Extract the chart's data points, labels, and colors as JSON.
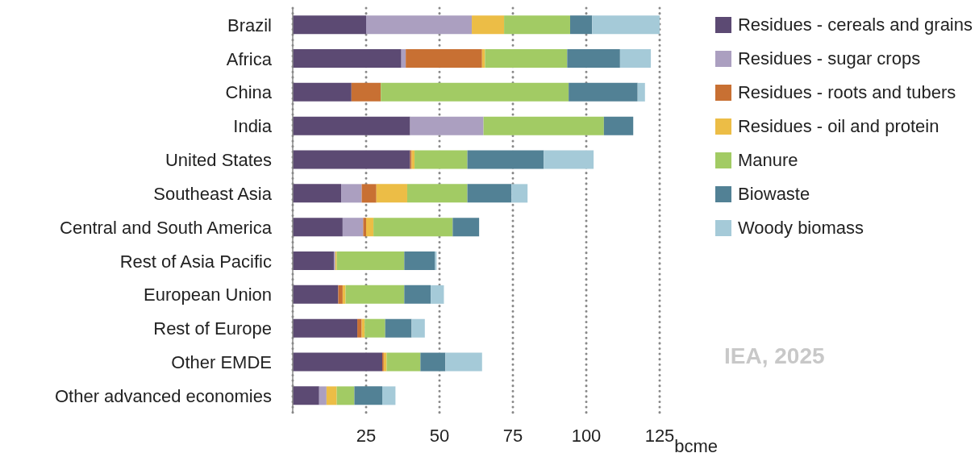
{
  "chart_data": {
    "type": "bar",
    "orientation": "horizontal",
    "stacked": true,
    "categories": [
      "Brazil",
      "Africa",
      "China",
      "India",
      "United States",
      "Southeast Asia",
      "Central and South America",
      "Rest of Asia Pacific",
      "European Union",
      "Rest of Europe",
      "Other EMDE",
      "Other advanced economies"
    ],
    "series": [
      {
        "name": "Residues - cereals and grains",
        "color": "#5c4a73",
        "values": [
          25,
          37,
          20,
          40,
          40,
          16.5,
          17,
          14,
          15.5,
          22,
          30.5,
          9
        ]
      },
      {
        "name": "Residues - sugar crops",
        "color": "#ab9fc0",
        "values": [
          36,
          1.5,
          0,
          25,
          0,
          7,
          7,
          0.5,
          0,
          0,
          0,
          2.5
        ]
      },
      {
        "name": "Residues - roots and tubers",
        "color": "#c87033",
        "values": [
          0,
          26,
          10,
          0,
          0.5,
          5,
          1,
          0,
          1.5,
          1.5,
          0.5,
          0
        ]
      },
      {
        "name": "Residues - oil and protein",
        "color": "#ecbd46",
        "values": [
          11,
          1,
          0,
          0,
          1,
          10.5,
          2.5,
          0.5,
          1,
          1,
          1,
          3.5
        ]
      },
      {
        "name": "Manure",
        "color": "#a2cb64",
        "values": [
          22.5,
          28,
          64,
          41,
          18,
          20.5,
          27,
          23,
          20,
          7,
          11.5,
          6
        ]
      },
      {
        "name": "Biowaste",
        "color": "#528195",
        "values": [
          7.5,
          18,
          23.5,
          10,
          26,
          15,
          9,
          10.5,
          9,
          9,
          8.5,
          9.5
        ]
      },
      {
        "name": "Woody biomass",
        "color": "#a5cad8",
        "values": [
          23,
          10.5,
          2.5,
          0,
          17,
          5.5,
          0,
          0.5,
          4.5,
          4.5,
          12.5,
          4.5
        ]
      }
    ],
    "xlim": [
      0,
      125
    ],
    "xticks": [
      25,
      50,
      75,
      100,
      125
    ],
    "xlabel": "bcme",
    "grid": "x",
    "legend": "top right",
    "annotations": [
      "IEA, 2025"
    ]
  }
}
